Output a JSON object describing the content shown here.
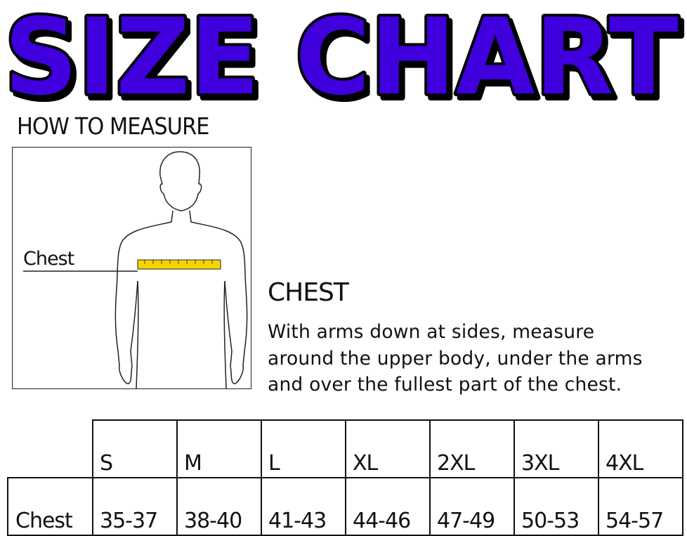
{
  "title": "SIZE CHART",
  "title_colors": {
    "fill": "#3f00dd",
    "outline": "#000000"
  },
  "how_to_measure": "HOW TO MEASURE",
  "figure": {
    "label": "Chest",
    "tape_color": "#f5d400"
  },
  "instructions": {
    "heading": "CHEST",
    "lines": [
      "With arms down at sides, measure",
      "around the upper body, under the arms",
      "and over the fullest part of the chest."
    ]
  },
  "table": {
    "sizes": [
      "S",
      "M",
      "L",
      "XL",
      "2XL",
      "3XL",
      "4XL"
    ],
    "rows": [
      {
        "label": "Chest",
        "values": [
          "35-37",
          "38-40",
          "41-43",
          "44-46",
          "47-49",
          "50-53",
          "54-57"
        ]
      }
    ]
  }
}
